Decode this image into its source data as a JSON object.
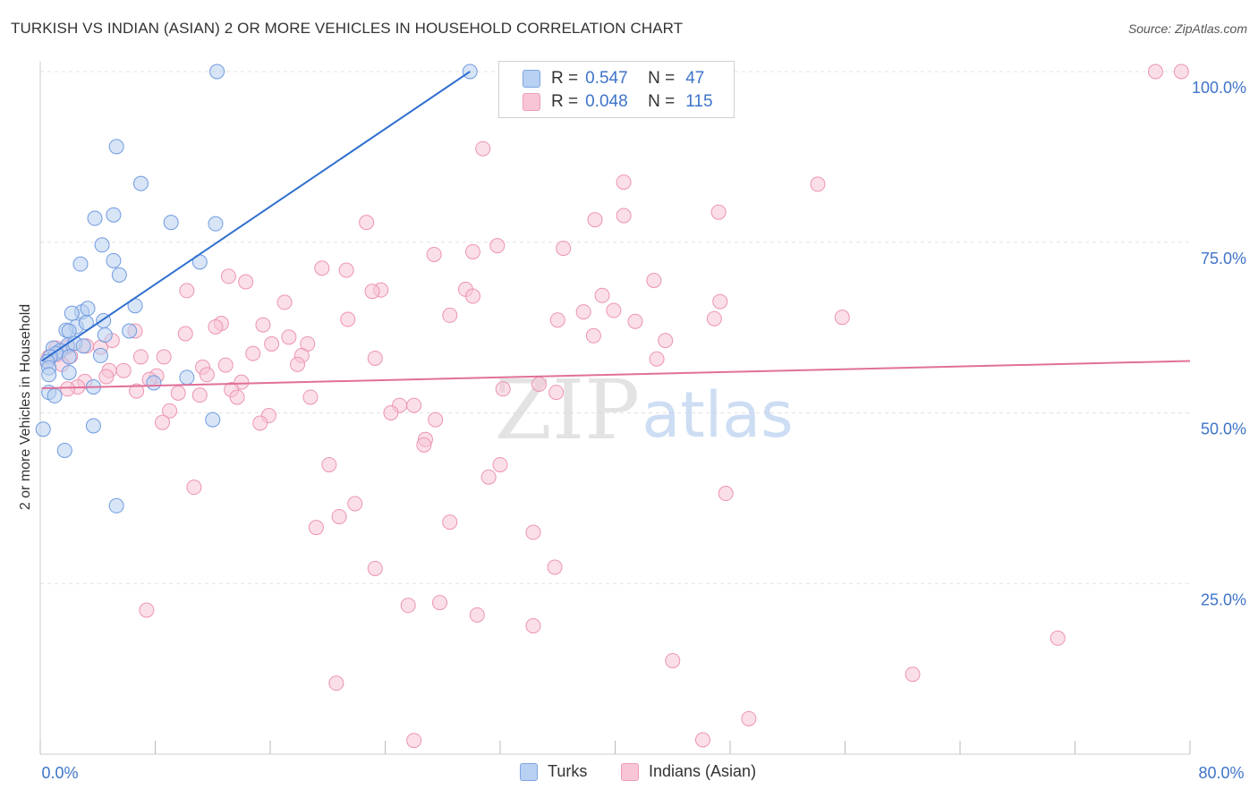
{
  "title": "TURKISH VS INDIAN (ASIAN) 2 OR MORE VEHICLES IN HOUSEHOLD CORRELATION CHART",
  "source": "Source: ZipAtlas.com",
  "watermark": {
    "zip": "ZIP",
    "atlas": "atlas"
  },
  "colors": {
    "turks_fill": "#b8d0f1",
    "turks_stroke": "#6f9be0",
    "turks_line": "#2f6fcf",
    "indians_fill": "#f8c5d6",
    "indians_stroke": "#ec94b3",
    "indians_line": "#e0709a",
    "tick_label": "#3f74c9",
    "grid": "#e3e3e3"
  },
  "legend": {
    "turks": {
      "r_label": "R =",
      "r_value": "0.547",
      "n_label": "N =",
      "n_value": "47"
    },
    "indians": {
      "r_label": "R =",
      "r_value": "0.048",
      "n_label": "N =",
      "n_value": "115"
    }
  },
  "chart_data": {
    "type": "scatter",
    "title": "TURKISH VS INDIAN (ASIAN) 2 OR MORE VEHICLES IN HOUSEHOLD CORRELATION CHART",
    "xlabel": "",
    "ylabel": "2 or more Vehicles in Household",
    "xlim": [
      0,
      80
    ],
    "ylim": [
      0,
      100
    ],
    "x_tick_labels": [
      {
        "value": 0,
        "label": "0.0%"
      },
      {
        "value": 80,
        "label": "80.0%"
      }
    ],
    "y_tick_labels": [
      {
        "value": 100,
        "label": "100.0%"
      },
      {
        "value": 75,
        "label": "75.0%"
      },
      {
        "value": 50,
        "label": "50.0%"
      },
      {
        "value": 25,
        "label": "25.0%"
      }
    ],
    "grid": true,
    "legend_position": "top-center",
    "series": [
      {
        "name": "Turks",
        "r": 0.547,
        "n": 47,
        "trend": {
          "x": [
            0.1,
            29.9
          ],
          "y": [
            57.6,
            100.0
          ]
        },
        "points": [
          [
            12.3,
            100.0
          ],
          [
            29.9,
            100.0
          ],
          [
            5.3,
            89.0
          ],
          [
            7.0,
            83.6
          ],
          [
            3.8,
            78.5
          ],
          [
            5.1,
            79.0
          ],
          [
            9.1,
            77.9
          ],
          [
            12.2,
            77.7
          ],
          [
            4.3,
            74.6
          ],
          [
            5.1,
            72.3
          ],
          [
            2.8,
            71.8
          ],
          [
            11.1,
            72.1
          ],
          [
            5.5,
            70.2
          ],
          [
            6.6,
            65.7
          ],
          [
            2.9,
            64.8
          ],
          [
            2.2,
            64.6
          ],
          [
            3.3,
            65.3
          ],
          [
            2.5,
            62.6
          ],
          [
            4.4,
            63.5
          ],
          [
            3.2,
            63.2
          ],
          [
            1.8,
            62.1
          ],
          [
            2.0,
            62.0
          ],
          [
            4.5,
            61.4
          ],
          [
            6.2,
            62.0
          ],
          [
            1.9,
            59.9
          ],
          [
            2.4,
            60.2
          ],
          [
            3.0,
            59.8
          ],
          [
            0.9,
            59.5
          ],
          [
            1.4,
            59.1
          ],
          [
            1.1,
            58.7
          ],
          [
            0.7,
            58.2
          ],
          [
            2.0,
            58.2
          ],
          [
            4.2,
            58.4
          ],
          [
            0.5,
            57.5
          ],
          [
            0.6,
            56.6
          ],
          [
            2.0,
            55.9
          ],
          [
            0.6,
            55.6
          ],
          [
            7.9,
            54.4
          ],
          [
            10.2,
            55.2
          ],
          [
            3.7,
            53.8
          ],
          [
            0.6,
            53.0
          ],
          [
            1.0,
            52.5
          ],
          [
            12.0,
            49.0
          ],
          [
            3.7,
            48.1
          ],
          [
            0.2,
            47.6
          ],
          [
            1.7,
            44.5
          ],
          [
            5.3,
            36.4
          ]
        ]
      },
      {
        "name": "Indians (Asian)",
        "r": 0.048,
        "n": 115,
        "trend": {
          "x": [
            0.1,
            80.0
          ],
          "y": [
            53.6,
            57.6
          ]
        },
        "points": [
          [
            77.6,
            100.0
          ],
          [
            79.4,
            100.0
          ],
          [
            30.8,
            88.7
          ],
          [
            40.6,
            83.8
          ],
          [
            54.1,
            83.5
          ],
          [
            47.2,
            79.4
          ],
          [
            38.6,
            78.3
          ],
          [
            40.6,
            78.9
          ],
          [
            22.7,
            77.9
          ],
          [
            31.8,
            74.5
          ],
          [
            36.4,
            74.1
          ],
          [
            27.4,
            73.2
          ],
          [
            30.1,
            73.6
          ],
          [
            19.6,
            71.2
          ],
          [
            21.3,
            70.9
          ],
          [
            13.1,
            70.0
          ],
          [
            14.3,
            69.2
          ],
          [
            42.7,
            69.4
          ],
          [
            23.7,
            68.0
          ],
          [
            29.6,
            68.1
          ],
          [
            10.2,
            67.9
          ],
          [
            23.1,
            67.8
          ],
          [
            39.1,
            67.2
          ],
          [
            30.1,
            67.1
          ],
          [
            17.0,
            66.2
          ],
          [
            47.3,
            66.3
          ],
          [
            39.9,
            65.0
          ],
          [
            37.8,
            64.8
          ],
          [
            28.5,
            64.3
          ],
          [
            55.8,
            64.0
          ],
          [
            21.4,
            63.7
          ],
          [
            36.0,
            63.6
          ],
          [
            41.4,
            63.4
          ],
          [
            46.9,
            63.8
          ],
          [
            12.6,
            63.1
          ],
          [
            15.5,
            62.9
          ],
          [
            12.2,
            62.6
          ],
          [
            6.6,
            62.0
          ],
          [
            10.1,
            61.6
          ],
          [
            38.5,
            61.3
          ],
          [
            17.3,
            61.1
          ],
          [
            5.0,
            60.6
          ],
          [
            43.5,
            60.6
          ],
          [
            16.1,
            60.1
          ],
          [
            18.6,
            60.1
          ],
          [
            3.2,
            59.8
          ],
          [
            1.9,
            59.6
          ],
          [
            1.1,
            59.5
          ],
          [
            4.2,
            59.6
          ],
          [
            14.8,
            58.7
          ],
          [
            23.3,
            58.0
          ],
          [
            8.6,
            58.2
          ],
          [
            2.1,
            58.3
          ],
          [
            7.0,
            58.2
          ],
          [
            18.2,
            58.4
          ],
          [
            0.6,
            58.2
          ],
          [
            1.2,
            58.5
          ],
          [
            42.9,
            57.9
          ],
          [
            17.9,
            57.1
          ],
          [
            11.3,
            56.7
          ],
          [
            12.9,
            57.0
          ],
          [
            5.8,
            56.2
          ],
          [
            4.8,
            56.2
          ],
          [
            0.5,
            57.5
          ],
          [
            1.5,
            57.1
          ],
          [
            11.6,
            55.6
          ],
          [
            8.1,
            55.4
          ],
          [
            4.6,
            55.3
          ],
          [
            7.6,
            54.9
          ],
          [
            3.1,
            54.6
          ],
          [
            14.0,
            54.5
          ],
          [
            2.6,
            53.8
          ],
          [
            1.9,
            53.5
          ],
          [
            13.3,
            53.4
          ],
          [
            34.7,
            54.2
          ],
          [
            6.7,
            53.2
          ],
          [
            9.6,
            52.9
          ],
          [
            32.2,
            53.5
          ],
          [
            35.9,
            53.0
          ],
          [
            18.8,
            52.3
          ],
          [
            11.1,
            52.6
          ],
          [
            13.7,
            52.3
          ],
          [
            25.0,
            51.1
          ],
          [
            26.0,
            51.1
          ],
          [
            9.0,
            50.3
          ],
          [
            15.9,
            49.6
          ],
          [
            24.4,
            50.0
          ],
          [
            27.5,
            49.0
          ],
          [
            8.5,
            48.6
          ],
          [
            15.3,
            48.5
          ],
          [
            26.8,
            46.1
          ],
          [
            26.7,
            45.3
          ],
          [
            20.1,
            42.4
          ],
          [
            32.0,
            42.4
          ],
          [
            31.2,
            40.6
          ],
          [
            10.7,
            39.1
          ],
          [
            47.7,
            38.2
          ],
          [
            21.9,
            36.7
          ],
          [
            20.8,
            34.8
          ],
          [
            28.5,
            34.0
          ],
          [
            19.2,
            33.2
          ],
          [
            34.3,
            32.5
          ],
          [
            35.8,
            27.4
          ],
          [
            23.3,
            27.2
          ],
          [
            25.6,
            21.8
          ],
          [
            27.8,
            22.2
          ],
          [
            7.4,
            21.1
          ],
          [
            30.4,
            20.4
          ],
          [
            34.3,
            18.8
          ],
          [
            70.8,
            17.0
          ],
          [
            44.0,
            13.7
          ],
          [
            60.7,
            11.7
          ],
          [
            20.6,
            10.4
          ],
          [
            49.3,
            5.2
          ],
          [
            26.0,
            2.0
          ],
          [
            46.1,
            2.1
          ]
        ]
      }
    ]
  }
}
